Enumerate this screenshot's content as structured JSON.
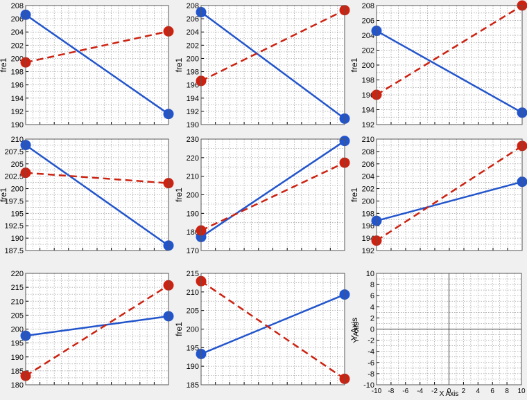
{
  "chart_data": [
    {
      "type": "line",
      "ylabel": "fre1",
      "ylim": [
        190,
        208
      ],
      "yticks": [
        "190",
        "192",
        "194",
        "196",
        "198",
        "200",
        "202",
        "204",
        "206",
        "208"
      ],
      "grid": true,
      "series": [
        {
          "color": "#2255cc",
          "style": "solid",
          "values": [
            206.6,
            191.6
          ]
        },
        {
          "color": "#cc2211",
          "style": "dashed",
          "values": [
            199.4,
            204.1
          ]
        }
      ]
    },
    {
      "type": "line",
      "ylabel": "fre1",
      "ylim": [
        190,
        208
      ],
      "yticks": [
        "190",
        "192",
        "194",
        "196",
        "198",
        "200",
        "202",
        "204",
        "206",
        "208"
      ],
      "grid": true,
      "series": [
        {
          "color": "#2255cc",
          "style": "solid",
          "values": [
            207.0,
            190.9
          ]
        },
        {
          "color": "#cc2211",
          "style": "dashed",
          "values": [
            196.6,
            207.3
          ]
        }
      ]
    },
    {
      "type": "line",
      "ylabel": "fre1",
      "ylim": [
        192,
        208
      ],
      "yticks": [
        "192",
        "194",
        "196",
        "198",
        "200",
        "202",
        "204",
        "206",
        "208"
      ],
      "grid": true,
      "series": [
        {
          "color": "#2255cc",
          "style": "solid",
          "values": [
            204.6,
            193.6
          ]
        },
        {
          "color": "#cc2211",
          "style": "dashed",
          "values": [
            196.0,
            208.0
          ]
        }
      ]
    },
    {
      "type": "line",
      "ylabel": "fre1",
      "ylim": [
        187.5,
        210
      ],
      "yticks": [
        "187.5",
        "190",
        "192.5",
        "195",
        "197.5",
        "200",
        "202.5",
        "205",
        "207.5",
        "210"
      ],
      "grid": true,
      "series": [
        {
          "color": "#2255cc",
          "style": "solid",
          "values": [
            208.8,
            188.5
          ]
        },
        {
          "color": "#cc2211",
          "style": "dashed",
          "values": [
            203.2,
            201.1
          ]
        }
      ]
    },
    {
      "type": "line",
      "ylabel": "fre1",
      "ylim": [
        170,
        230
      ],
      "yticks": [
        "170",
        "180",
        "190",
        "200",
        "210",
        "220",
        "230"
      ],
      "grid": true,
      "series": [
        {
          "color": "#2255cc",
          "style": "solid",
          "values": [
            177.3,
            229.0
          ]
        },
        {
          "color": "#cc2211",
          "style": "dashed",
          "values": [
            180.8,
            217.3
          ]
        }
      ]
    },
    {
      "type": "line",
      "ylabel": "fre1",
      "ylim": [
        192,
        210
      ],
      "yticks": [
        "192",
        "194",
        "196",
        "198",
        "200",
        "202",
        "204",
        "206",
        "208",
        "210"
      ],
      "grid": true,
      "series": [
        {
          "color": "#2255cc",
          "style": "solid",
          "values": [
            196.8,
            203.1
          ]
        },
        {
          "color": "#cc2211",
          "style": "dashed",
          "values": [
            193.6,
            208.9
          ]
        }
      ]
    },
    {
      "type": "line",
      "ylabel": "",
      "ylim": [
        180,
        220
      ],
      "yticks": [
        "180",
        "185",
        "190",
        "195",
        "200",
        "205",
        "210",
        "215",
        "220"
      ],
      "grid": true,
      "series": [
        {
          "color": "#2255cc",
          "style": "solid",
          "values": [
            197.6,
            204.6
          ]
        },
        {
          "color": "#cc2211",
          "style": "dashed",
          "values": [
            183.2,
            215.7
          ]
        }
      ]
    },
    {
      "type": "line",
      "ylabel": "fre1",
      "ylim": [
        185,
        215
      ],
      "yticks": [
        "185",
        "190",
        "195",
        "200",
        "205",
        "210",
        "215"
      ],
      "grid": true,
      "series": [
        {
          "color": "#2255cc",
          "style": "solid",
          "values": [
            193.3,
            209.3
          ]
        },
        {
          "color": "#cc2211",
          "style": "dashed",
          "values": [
            212.9,
            186.6
          ]
        }
      ]
    },
    {
      "type": "line",
      "xlabel": "X Axis",
      "ylabel": "Y Axis",
      "xlim": [
        -10,
        10
      ],
      "ylim": [
        -10,
        10
      ],
      "xticks": [
        "-10",
        "-8",
        "-6",
        "-4",
        "-2",
        "0",
        "2",
        "4",
        "6",
        "8",
        "10"
      ],
      "yticks": [
        "-10",
        "-8",
        "-6",
        "-4",
        "-2",
        "0",
        "2",
        "4",
        "6",
        "8",
        "10"
      ],
      "grid": true,
      "series": []
    }
  ]
}
